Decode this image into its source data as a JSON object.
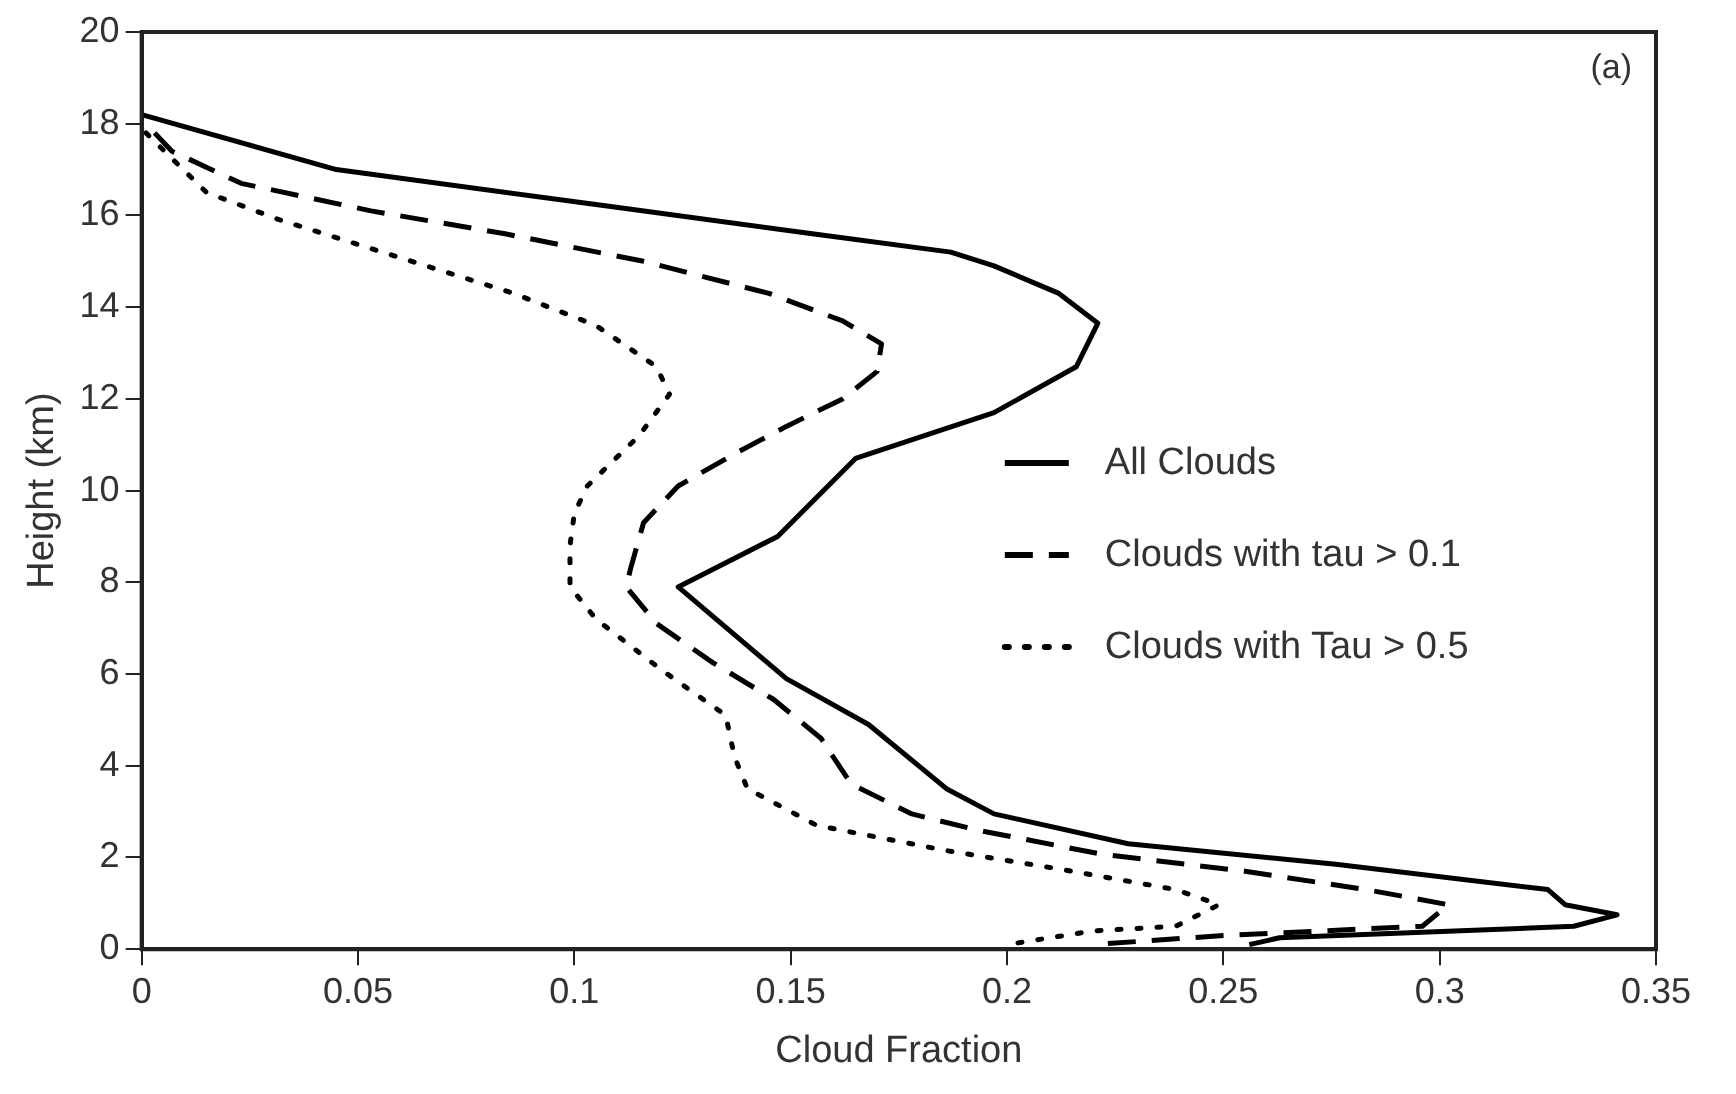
{
  "chart_data": {
    "type": "line",
    "xlabel": "Cloud Fraction",
    "ylabel": "Height (km)",
    "annotations": [
      "(a)"
    ],
    "xlim": [
      0,
      0.35
    ],
    "xticks": [
      0,
      0.05,
      0.1,
      0.15,
      0.2,
      0.25,
      0.3,
      0.35
    ],
    "ylim": [
      0,
      20
    ],
    "yticks": [
      0,
      2,
      4,
      6,
      8,
      10,
      12,
      14,
      16,
      18,
      20
    ],
    "grid": false,
    "legend": "right",
    "marker": "none",
    "series": [
      {
        "name": "All Clouds",
        "color": "#000000",
        "line_style": "solid",
        "x": [
          0,
          0.045,
          0.108,
          0.155,
          0.187,
          0.197,
          0.212,
          0.221,
          0.216,
          0.197,
          0.165,
          0.147,
          0.124,
          0.149,
          0.168,
          0.186,
          0.197,
          0.228,
          0.276,
          0.325,
          0.329,
          0.341,
          0.331,
          0.263,
          0.256
        ],
        "values": [
          18.2,
          17.0,
          16.2,
          15.6,
          15.2,
          14.9,
          14.3,
          13.65,
          12.7,
          11.7,
          10.7,
          9.0,
          7.9,
          5.9,
          4.9,
          3.5,
          2.95,
          2.3,
          1.85,
          1.3,
          0.97,
          0.75,
          0.5,
          0.25,
          0.1
        ]
      },
      {
        "name": "Clouds with tau > 0.1",
        "color": "#000000",
        "line_style": "dashed",
        "x": [
          0.003,
          0.007,
          0.023,
          0.053,
          0.084,
          0.116,
          0.145,
          0.162,
          0.171,
          0.17,
          0.162,
          0.149,
          0.137,
          0.124,
          0.116,
          0.113,
          0.112,
          0.119,
          0.132,
          0.146,
          0.157,
          0.164,
          0.178,
          0.193,
          0.222,
          0.255,
          0.283,
          0.302,
          0.296,
          0.25,
          0.22
        ],
        "values": [
          17.8,
          17.4,
          16.7,
          16.1,
          15.6,
          15.0,
          14.3,
          13.7,
          13.2,
          12.6,
          12.0,
          11.4,
          10.8,
          10.1,
          9.3,
          8.3,
          7.9,
          7.1,
          6.25,
          5.45,
          4.6,
          3.6,
          2.95,
          2.6,
          2.07,
          1.7,
          1.3,
          0.97,
          0.5,
          0.3,
          0.1
        ]
      },
      {
        "name": "Clouds with Tau > 0.5",
        "color": "#000000",
        "line_style": "dotted",
        "x": [
          0.001,
          0.015,
          0.032,
          0.059,
          0.086,
          0.105,
          0.119,
          0.122,
          0.115,
          0.103,
          0.1,
          0.099,
          0.099,
          0.105,
          0.12,
          0.135,
          0.137,
          0.14,
          0.156,
          0.186,
          0.212,
          0.239,
          0.249,
          0.239,
          0.22,
          0.2
        ],
        "values": [
          17.8,
          16.5,
          15.9,
          15.1,
          14.3,
          13.6,
          12.7,
          12.1,
          11.2,
          10.1,
          9.5,
          8.8,
          7.9,
          7.2,
          6.1,
          5.1,
          4.2,
          3.5,
          2.7,
          2.15,
          1.75,
          1.3,
          0.97,
          0.5,
          0.4,
          0.1
        ]
      }
    ]
  }
}
